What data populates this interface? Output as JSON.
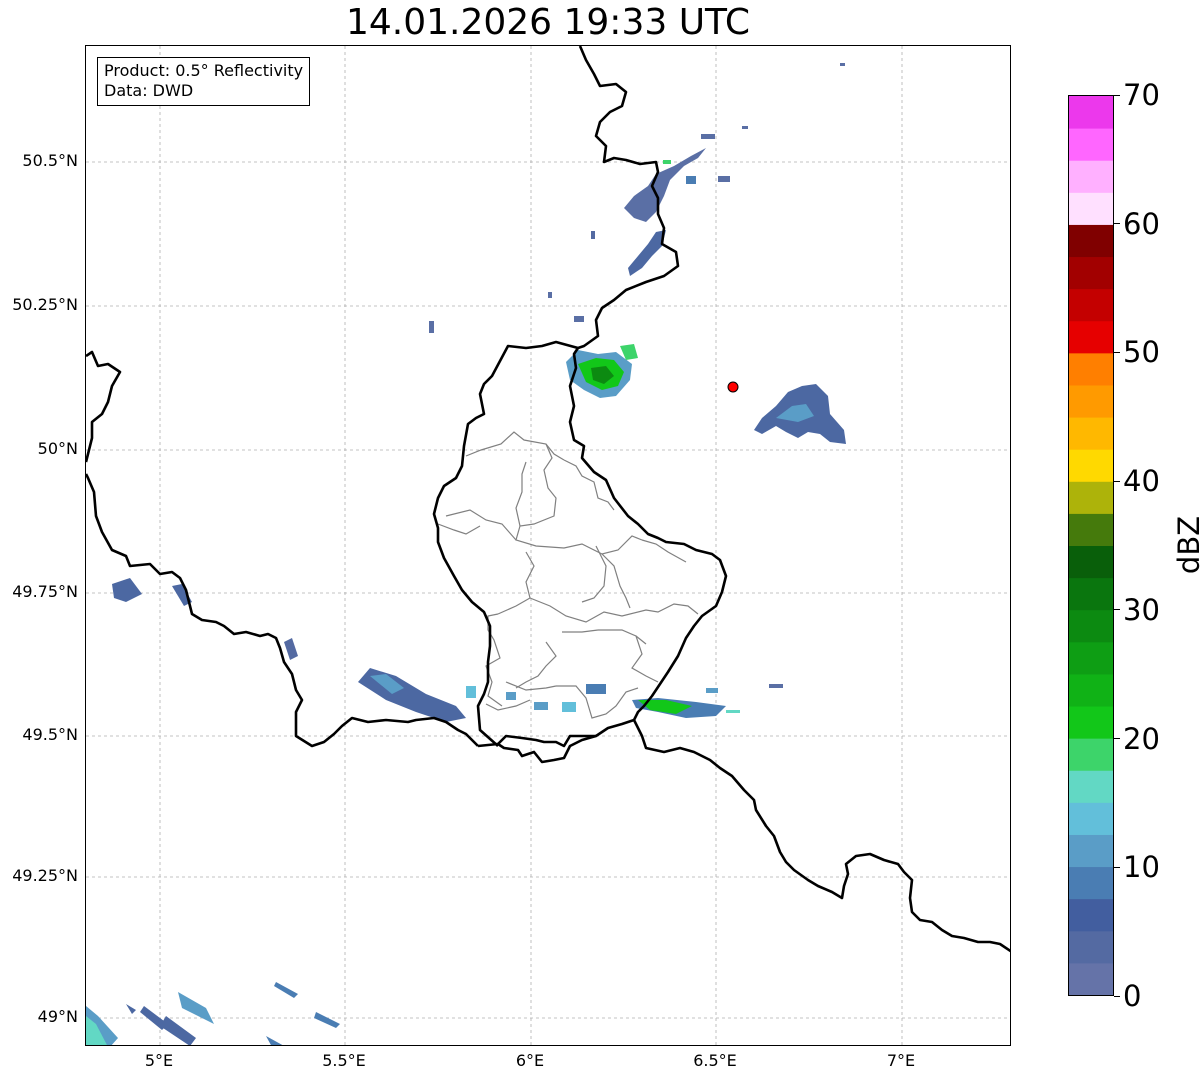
{
  "title": "14.01.2026 19:33 UTC",
  "info": {
    "product": "Product: 0.5° Reflectivity",
    "data": "Data: DWD"
  },
  "axes": {
    "lat_labels": [
      "50.5°N",
      "50.25°N",
      "50°N",
      "49.75°N",
      "49.5°N",
      "49.25°N",
      "49°N"
    ],
    "lon_labels": [
      "5°E",
      "5.5°E",
      "6°E",
      "6.5°E",
      "7°E"
    ]
  },
  "colorbar": {
    "unit": "dBZ",
    "min": 0,
    "max": 70,
    "step": 2.5,
    "tick_labels": [
      "0",
      "10",
      "20",
      "30",
      "40",
      "50",
      "60",
      "70"
    ],
    "colors": [
      "#6573a8",
      "#546aa2",
      "#425e9f",
      "#4a7db3",
      "#5a9dc7",
      "#62bfda",
      "#62d8c4",
      "#3dd46a",
      "#12c719",
      "#10b216",
      "#0e9e14",
      "#0c8a11",
      "#0a760e",
      "#095f0a",
      "#457a0c",
      "#adb30a",
      "#ffd900",
      "#ffb800",
      "#ff9a00",
      "#ff7f00",
      "#e60000",
      "#c40000",
      "#a20000",
      "#800000",
      "#ffe0ff",
      "#ffb0ff",
      "#ff66ff",
      "#ec38ec"
    ]
  },
  "colors": {
    "radar_site": "#ff0000",
    "border": "#000000",
    "admin_border": "#808080",
    "grid": "#b0b0b0"
  },
  "icons": {
    "radar_site": "red-circle-marker"
  }
}
